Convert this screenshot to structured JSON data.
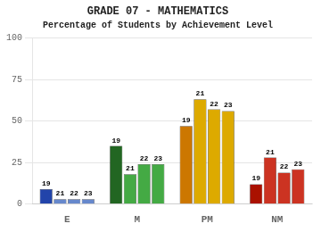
{
  "chart_data": {
    "type": "bar",
    "title": "GRADE 07 - MATHEMATICS",
    "subtitle": "Percentage of Students by Achievement Level",
    "categories": [
      "E",
      "M",
      "PM",
      "NM"
    ],
    "series": [
      {
        "values": [
          9,
          35,
          47,
          12
        ],
        "colors": [
          "#2244aa",
          "#226622",
          "#cc7700",
          "#aa1100"
        ],
        "annotations": [
          "19",
          "19",
          "19",
          "19"
        ]
      },
      {
        "values": [
          3,
          18,
          63,
          28
        ],
        "colors": [
          "#6688cc",
          "#44aa44",
          "#ddaa00",
          "#cc3322"
        ],
        "annotations": [
          "21",
          "21",
          "21",
          "21"
        ]
      },
      {
        "values": [
          3,
          24,
          57,
          19
        ],
        "colors": [
          "#6688cc",
          "#44aa44",
          "#ddaa00",
          "#cc3322"
        ],
        "annotations": [
          "22",
          "22",
          "22",
          "22"
        ]
      },
      {
        "values": [
          3,
          24,
          56,
          21
        ],
        "colors": [
          "#6688cc",
          "#44aa44",
          "#ddaa00",
          "#cc3322"
        ],
        "annotations": [
          "23",
          "23",
          "23",
          "23"
        ]
      }
    ],
    "ylim": [
      0,
      100
    ],
    "yticks": [
      0,
      25,
      50,
      75,
      100
    ],
    "grid": true
  }
}
